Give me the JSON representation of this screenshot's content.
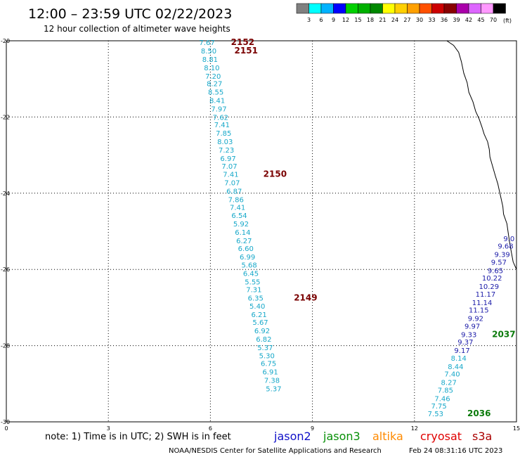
{
  "chart_data": {
    "type": "scatter",
    "title": "12:00 – 23:59 UTC 02/22/2023",
    "subtitle": "12 hour collection of altimeter wave heights",
    "x_ticks": [
      "0",
      "3",
      "6",
      "9",
      "12",
      "15"
    ],
    "y_ticks": [
      "-20",
      "-22",
      "-24",
      "-26",
      "-28",
      "-30"
    ],
    "xlim": [
      0,
      15
    ],
    "ylim": [
      -30,
      -20
    ],
    "grid": true,
    "colorbar": {
      "labels": [
        "3",
        "6",
        "9",
        "12",
        "15",
        "18",
        "21",
        "24",
        "27",
        "30",
        "33",
        "36",
        "39",
        "42",
        "45",
        "70"
      ],
      "unit": "(ft)",
      "colors": [
        "#808080",
        "#00ffff",
        "#00b2ff",
        "#0000ff",
        "#00d000",
        "#00b000",
        "#008800",
        "#ffff00",
        "#ffd000",
        "#ffa000",
        "#ff5000",
        "#cc0000",
        "#880000",
        "#aa00aa",
        "#dd66ff",
        "#ff99ff",
        "#000000"
      ]
    },
    "series": [
      {
        "name": "jason3",
        "color": "#17a8c9",
        "points": [
          {
            "x": 5.9,
            "y": -20.04,
            "v": "7.67"
          },
          {
            "x": 5.95,
            "y": -20.26,
            "v": "8.50"
          },
          {
            "x": 5.99,
            "y": -20.48,
            "v": "8.81"
          },
          {
            "x": 6.04,
            "y": -20.7,
            "v": "8.10"
          },
          {
            "x": 6.08,
            "y": -20.92,
            "v": "7.20"
          },
          {
            "x": 6.12,
            "y": -21.12,
            "v": "8.27"
          },
          {
            "x": 6.16,
            "y": -21.34,
            "v": "8.55"
          },
          {
            "x": 6.2,
            "y": -21.56,
            "v": "8.41"
          },
          {
            "x": 6.25,
            "y": -21.78,
            "v": "7.97"
          },
          {
            "x": 6.3,
            "y": -22.0,
            "v": "7.62"
          },
          {
            "x": 6.34,
            "y": -22.2,
            "v": "7.41"
          },
          {
            "x": 6.39,
            "y": -22.42,
            "v": "7.85"
          },
          {
            "x": 6.43,
            "y": -22.64,
            "v": "8.03"
          },
          {
            "x": 6.47,
            "y": -22.86,
            "v": "7.23"
          },
          {
            "x": 6.52,
            "y": -23.08,
            "v": "6.97"
          },
          {
            "x": 6.56,
            "y": -23.28,
            "v": "7.07"
          },
          {
            "x": 6.6,
            "y": -23.5,
            "v": "7.41"
          },
          {
            "x": 6.64,
            "y": -23.72,
            "v": "7.07"
          },
          {
            "x": 6.7,
            "y": -23.94,
            "v": "6.87"
          },
          {
            "x": 6.75,
            "y": -24.16,
            "v": "7.86"
          },
          {
            "x": 6.8,
            "y": -24.36,
            "v": "7.41"
          },
          {
            "x": 6.85,
            "y": -24.58,
            "v": "6.54"
          },
          {
            "x": 6.9,
            "y": -24.8,
            "v": "5.92"
          },
          {
            "x": 6.95,
            "y": -25.02,
            "v": "6.14"
          },
          {
            "x": 6.99,
            "y": -25.24,
            "v": "6.27"
          },
          {
            "x": 7.04,
            "y": -25.44,
            "v": "6.60"
          },
          {
            "x": 7.09,
            "y": -25.66,
            "v": "6.99"
          },
          {
            "x": 7.14,
            "y": -25.88,
            "v": "5.68"
          },
          {
            "x": 7.19,
            "y": -26.1,
            "v": "6.45"
          },
          {
            "x": 7.24,
            "y": -26.32,
            "v": "5.55"
          },
          {
            "x": 7.28,
            "y": -26.52,
            "v": "7.31"
          },
          {
            "x": 7.33,
            "y": -26.74,
            "v": "6.35"
          },
          {
            "x": 7.38,
            "y": -26.96,
            "v": "5.40"
          },
          {
            "x": 7.43,
            "y": -27.18,
            "v": "6.21"
          },
          {
            "x": 7.47,
            "y": -27.38,
            "v": "5.67"
          },
          {
            "x": 7.52,
            "y": -27.6,
            "v": "6.92"
          },
          {
            "x": 7.57,
            "y": -27.82,
            "v": "6.82"
          },
          {
            "x": 7.61,
            "y": -28.04,
            "v": "5.37"
          },
          {
            "x": 7.66,
            "y": -28.26,
            "v": "5.30"
          },
          {
            "x": 7.71,
            "y": -28.46,
            "v": "6.75"
          },
          {
            "x": 7.76,
            "y": -28.68,
            "v": "6.91"
          },
          {
            "x": 7.81,
            "y": -28.9,
            "v": "7.38"
          },
          {
            "x": 7.86,
            "y": -29.12,
            "v": "5.37"
          },
          {
            "x": 12.62,
            "y": -29.78,
            "v": "7.53"
          },
          {
            "x": 12.72,
            "y": -29.58,
            "v": "7.75"
          },
          {
            "x": 12.82,
            "y": -29.38,
            "v": "7.46"
          },
          {
            "x": 12.91,
            "y": -29.16,
            "v": "7.85"
          },
          {
            "x": 13.01,
            "y": -28.96,
            "v": "8.27"
          },
          {
            "x": 13.11,
            "y": -28.74,
            "v": "7.40"
          },
          {
            "x": 13.21,
            "y": -28.54,
            "v": "8.44"
          },
          {
            "x": 13.3,
            "y": -28.32,
            "v": "8.14"
          }
        ]
      },
      {
        "name": "jason2",
        "color": "#1a1aa8",
        "points": [
          {
            "x": 13.4,
            "y": -28.12,
            "v": "9.17"
          },
          {
            "x": 13.5,
            "y": -27.9,
            "v": "9.37"
          },
          {
            "x": 13.6,
            "y": -27.7,
            "v": "9.33"
          },
          {
            "x": 13.7,
            "y": -27.48,
            "v": "9.97"
          },
          {
            "x": 13.8,
            "y": -27.28,
            "v": "9.92"
          },
          {
            "x": 13.89,
            "y": -27.06,
            "v": "11.15"
          },
          {
            "x": 13.99,
            "y": -26.86,
            "v": "11.14"
          },
          {
            "x": 14.09,
            "y": -26.64,
            "v": "11.17"
          },
          {
            "x": 14.19,
            "y": -26.44,
            "v": "10.29"
          },
          {
            "x": 14.28,
            "y": -26.22,
            "v": "10.22"
          },
          {
            "x": 14.38,
            "y": -26.02,
            "v": "9.65"
          },
          {
            "x": 14.48,
            "y": -25.8,
            "v": "9.57"
          },
          {
            "x": 14.58,
            "y": -25.6,
            "v": "9.39"
          },
          {
            "x": 14.68,
            "y": -25.38,
            "v": "9.68"
          },
          {
            "x": 14.78,
            "y": -25.18,
            "v": "9.0"
          }
        ]
      }
    ],
    "pass_labels": [
      {
        "text": "2152",
        "x": 6.95,
        "y": -20.04,
        "color": "#7a0000"
      },
      {
        "text": "2151",
        "x": 7.05,
        "y": -20.26,
        "color": "#7a0000"
      },
      {
        "text": "2150",
        "x": 7.9,
        "y": -23.5,
        "color": "#7a0000"
      },
      {
        "text": "2149",
        "x": 8.8,
        "y": -26.74,
        "color": "#7a0000"
      },
      {
        "text": "2037",
        "x": 14.97,
        "y": -27.7,
        "color": "#0a7a0a"
      },
      {
        "text": "2036",
        "x": 13.9,
        "y": -29.78,
        "color": "#0a7a0a"
      }
    ],
    "legend": [
      {
        "text": "jason2",
        "color": "#1010c8"
      },
      {
        "text": "jason3",
        "color": "#089008"
      },
      {
        "text": "altika",
        "color": "#ff8a00"
      },
      {
        "text": "cryosat",
        "color": "#e00000"
      },
      {
        "text": "s3a",
        "color": "#aa0000"
      }
    ],
    "note": "note:  1) Time is in UTC;  2) SWH is in feet",
    "footer_left": "NOAA/NESDIS Center for Satellite Applications and Research",
    "footer_right": "Feb 24 08:31:16 UTC 2023",
    "coastline": [
      [
        12.95,
        -20.0
      ],
      [
        13.15,
        -20.12
      ],
      [
        13.3,
        -20.3
      ],
      [
        13.38,
        -20.55
      ],
      [
        13.45,
        -20.85
      ],
      [
        13.55,
        -21.1
      ],
      [
        13.6,
        -21.35
      ],
      [
        13.72,
        -21.6
      ],
      [
        13.8,
        -21.85
      ],
      [
        13.9,
        -22.05
      ],
      [
        13.98,
        -22.25
      ],
      [
        14.05,
        -22.45
      ],
      [
        14.15,
        -22.65
      ],
      [
        14.2,
        -22.85
      ],
      [
        14.22,
        -23.05
      ],
      [
        14.3,
        -23.3
      ],
      [
        14.38,
        -23.55
      ],
      [
        14.45,
        -23.75
      ],
      [
        14.5,
        -23.95
      ],
      [
        14.55,
        -24.15
      ],
      [
        14.6,
        -24.35
      ],
      [
        14.62,
        -24.55
      ],
      [
        14.72,
        -24.8
      ],
      [
        14.75,
        -25.0
      ],
      [
        14.8,
        -25.3
      ],
      [
        14.85,
        -25.55
      ],
      [
        14.9,
        -25.8
      ],
      [
        15.0,
        -26.0
      ]
    ]
  }
}
